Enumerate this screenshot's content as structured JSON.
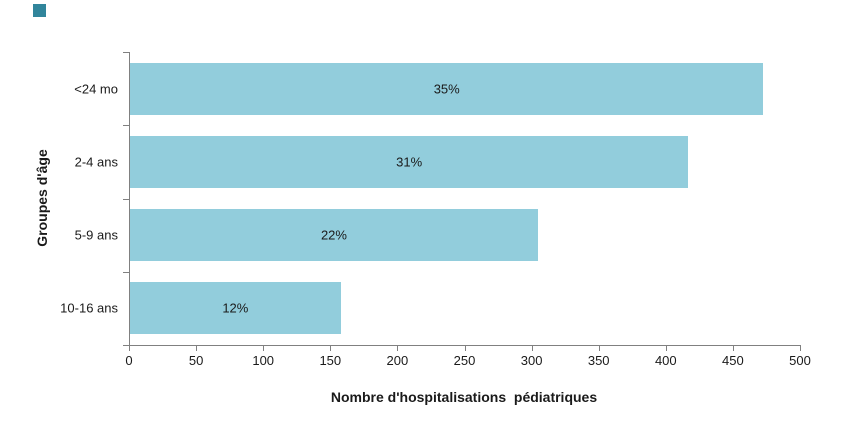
{
  "chart_data": {
    "type": "bar",
    "orientation": "horizontal",
    "categories": [
      "<24 mo",
      "2-4 ans",
      "5-9 ans",
      "10-16 ans"
    ],
    "values": [
      472,
      416,
      304,
      157
    ],
    "bar_labels": [
      "35%",
      "31%",
      "22%",
      "12%"
    ],
    "xlabel": "Nombre d'hospitalisations  pédiatriques",
    "ylabel": "Groupes d'âge",
    "xlim": [
      0,
      500
    ],
    "xticks": [
      0,
      50,
      100,
      150,
      200,
      250,
      300,
      350,
      400,
      450,
      500
    ],
    "grid": false,
    "legend": "none",
    "colors": {
      "bar_fill": "#92CDDC",
      "axis_line": "#808080",
      "text": "#1a1a1a",
      "corner_marker": "#31859B"
    }
  }
}
